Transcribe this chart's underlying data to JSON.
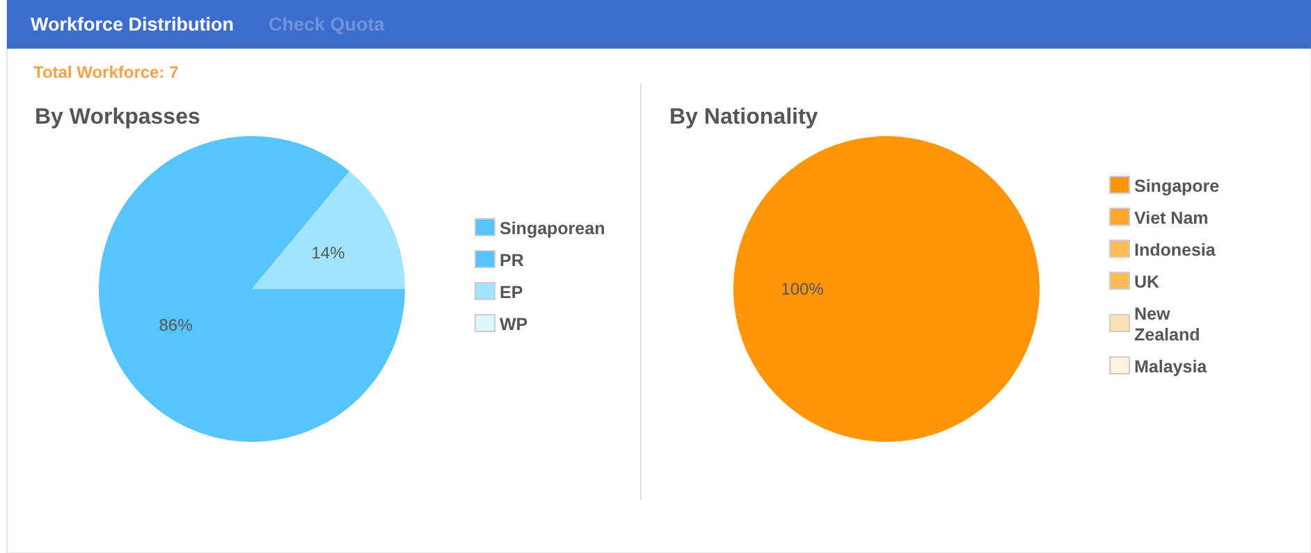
{
  "chart_data": [
    {
      "type": "pie",
      "title": "By Workpasses",
      "annotations": [
        "Workforce Distribution",
        "Check Quota",
        "Total Workforce: 7"
      ],
      "categories": [
        "Singaporean",
        "PR",
        "EP",
        "WP"
      ],
      "values": [
        86,
        0,
        14,
        0
      ],
      "colors": [
        "#56c5ff",
        "#56c5ff",
        "#a2e4ff",
        "#dff5ff"
      ],
      "value_labels": [
        "86%",
        null,
        "14%",
        null
      ],
      "legend": "right"
    },
    {
      "type": "pie",
      "title": "By Nationality",
      "categories": [
        "Singapore",
        "Viet Nam",
        "Indonesia",
        "UK",
        "New Zealand",
        "Malaysia"
      ],
      "values": [
        100,
        0,
        0,
        0,
        0,
        0
      ],
      "colors": [
        "#ff9507",
        "#ffa630",
        "#ffbb55",
        "#ffbb55",
        "#ffe0b0",
        "#fff2dc"
      ],
      "value_labels": [
        "100%",
        null,
        null,
        null,
        null,
        null
      ],
      "legend": "right"
    }
  ]
}
